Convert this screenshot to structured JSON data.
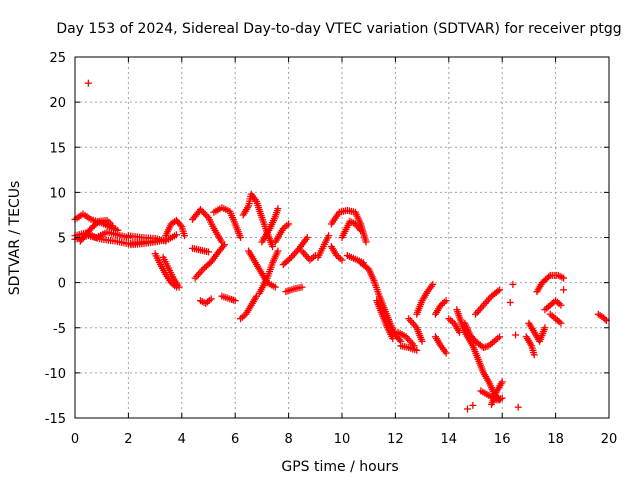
{
  "chart_data": {
    "type": "scatter",
    "title": "Day 153 of 2024, Sidereal Day-to-day VTEC variation (SDTVAR) for receiver ptgg",
    "xlabel": "GPS time / hours",
    "ylabel": "SDTVAR / TECUs",
    "xlim": [
      0,
      20
    ],
    "ylim": [
      -15,
      25
    ],
    "xticks": [
      "0",
      "2",
      "4",
      "6",
      "8",
      "10",
      "12",
      "14",
      "16",
      "18",
      "20"
    ],
    "yticks": [
      "25",
      "20",
      "15",
      "10",
      "5",
      "0",
      "-5",
      "-10",
      "-15"
    ],
    "grid": true,
    "marker": "+",
    "color": "#ff0000",
    "series": [
      {
        "name": "tracks",
        "segments": [
          [
            [
              0.0,
              5.2
            ],
            [
              0.4,
              5.5
            ],
            [
              0.8,
              5.0
            ],
            [
              1.2,
              5.6
            ],
            [
              1.6,
              5.3
            ],
            [
              2.0,
              5.0
            ]
          ],
          [
            [
              0.0,
              7.0
            ],
            [
              0.3,
              7.6
            ],
            [
              0.6,
              7.0
            ],
            [
              1.0,
              6.6
            ],
            [
              1.3,
              6.2
            ],
            [
              1.6,
              5.8
            ]
          ],
          [
            [
              0.0,
              4.8
            ],
            [
              0.5,
              5.2
            ],
            [
              1.0,
              4.8
            ],
            [
              1.5,
              4.6
            ],
            [
              2.0,
              4.3
            ],
            [
              2.5,
              4.5
            ],
            [
              3.0,
              4.6
            ]
          ],
          [
            [
              0.2,
              4.6
            ],
            [
              0.6,
              6.0
            ],
            [
              0.9,
              6.8
            ],
            [
              1.2,
              6.9
            ],
            [
              1.4,
              6.3
            ]
          ],
          [
            [
              2.0,
              5.2
            ],
            [
              2.5,
              5.0
            ],
            [
              3.0,
              4.9
            ],
            [
              3.4,
              4.6
            ]
          ],
          [
            [
              2.1,
              4.2
            ],
            [
              2.5,
              4.3
            ],
            [
              3.0,
              4.5
            ],
            [
              3.5,
              4.8
            ],
            [
              3.8,
              5.3
            ]
          ],
          [
            [
              3.4,
              5.2
            ],
            [
              3.6,
              6.5
            ],
            [
              3.8,
              6.9
            ],
            [
              4.0,
              6.2
            ],
            [
              4.1,
              5.2
            ]
          ],
          [
            [
              3.3,
              2.8
            ],
            [
              3.5,
              1.6
            ],
            [
              3.7,
              0.4
            ],
            [
              3.9,
              -0.5
            ]
          ],
          [
            [
              3.0,
              3.2
            ],
            [
              3.2,
              2.0
            ],
            [
              3.4,
              0.9
            ],
            [
              3.6,
              0.0
            ],
            [
              3.8,
              -0.5
            ]
          ],
          [
            [
              4.4,
              3.8
            ],
            [
              4.7,
              3.6
            ],
            [
              5.0,
              3.4
            ]
          ],
          [
            [
              4.4,
              7.0
            ],
            [
              4.7,
              8.1
            ],
            [
              5.0,
              7.2
            ],
            [
              5.2,
              6.0
            ],
            [
              5.5,
              4.5
            ]
          ],
          [
            [
              4.7,
              -2.0
            ],
            [
              4.9,
              -2.3
            ],
            [
              5.1,
              -1.8
            ]
          ],
          [
            [
              5.5,
              -1.5
            ],
            [
              5.8,
              -1.8
            ],
            [
              6.0,
              -2.0
            ]
          ],
          [
            [
              4.5,
              0.5
            ],
            [
              4.8,
              1.5
            ],
            [
              5.1,
              2.3
            ],
            [
              5.4,
              3.5
            ],
            [
              5.6,
              4.2
            ]
          ],
          [
            [
              5.2,
              7.8
            ],
            [
              5.5,
              8.3
            ],
            [
              5.8,
              7.9
            ],
            [
              6.0,
              6.5
            ],
            [
              6.2,
              5.0
            ]
          ],
          [
            [
              6.2,
              -4.0
            ],
            [
              6.4,
              -3.5
            ],
            [
              6.6,
              -2.5
            ],
            [
              6.8,
              -1.5
            ]
          ],
          [
            [
              6.3,
              7.5
            ],
            [
              6.5,
              8.5
            ],
            [
              6.6,
              9.8
            ],
            [
              6.8,
              9.0
            ],
            [
              7.0,
              7.2
            ],
            [
              7.2,
              5.5
            ],
            [
              7.4,
              4.0
            ]
          ],
          [
            [
              6.9,
              -1.2
            ],
            [
              7.2,
              0.5
            ],
            [
              7.4,
              2.2
            ],
            [
              7.6,
              3.5
            ]
          ],
          [
            [
              7.0,
              4.5
            ],
            [
              7.3,
              6.0
            ],
            [
              7.5,
              7.3
            ],
            [
              7.6,
              8.2
            ]
          ],
          [
            [
              6.5,
              3.5
            ],
            [
              6.8,
              2.0
            ],
            [
              7.0,
              1.0
            ],
            [
              7.2,
              0.0
            ],
            [
              7.5,
              -0.5
            ]
          ],
          [
            [
              7.5,
              4.5
            ],
            [
              7.8,
              6.0
            ],
            [
              8.0,
              6.5
            ]
          ],
          [
            [
              7.9,
              -1.0
            ],
            [
              8.2,
              -0.7
            ],
            [
              8.5,
              -0.5
            ]
          ],
          [
            [
              7.8,
              2.0
            ],
            [
              8.1,
              2.8
            ],
            [
              8.4,
              3.8
            ],
            [
              8.7,
              5.0
            ]
          ],
          [
            [
              8.5,
              3.5
            ],
            [
              8.8,
              2.5
            ],
            [
              9.0,
              3.0
            ]
          ],
          [
            [
              9.1,
              2.8
            ],
            [
              9.3,
              4.0
            ],
            [
              9.5,
              5.2
            ]
          ],
          [
            [
              9.6,
              4.0
            ],
            [
              9.8,
              3.0
            ],
            [
              10.0,
              2.5
            ]
          ],
          [
            [
              9.6,
              6.5
            ],
            [
              9.9,
              7.8
            ],
            [
              10.2,
              8.0
            ],
            [
              10.5,
              7.8
            ],
            [
              10.7,
              6.5
            ],
            [
              10.9,
              4.5
            ]
          ],
          [
            [
              10.0,
              5.0
            ],
            [
              10.3,
              6.8
            ],
            [
              10.5,
              6.5
            ],
            [
              10.7,
              5.8
            ]
          ],
          [
            [
              10.2,
              3.0
            ],
            [
              10.5,
              2.6
            ],
            [
              10.8,
              2.2
            ]
          ],
          [
            [
              10.7,
              2.2
            ],
            [
              11.0,
              1.5
            ],
            [
              11.2,
              0.2
            ],
            [
              11.4,
              -1.5
            ],
            [
              11.6,
              -3.0
            ],
            [
              11.8,
              -4.5
            ],
            [
              12.0,
              -5.8
            ],
            [
              12.2,
              -6.5
            ]
          ],
          [
            [
              11.3,
              -2.0
            ],
            [
              11.5,
              -3.5
            ],
            [
              11.7,
              -5.0
            ],
            [
              11.9,
              -6.2
            ]
          ],
          [
            [
              12.1,
              -5.5
            ],
            [
              12.4,
              -6.0
            ],
            [
              12.7,
              -7.0
            ]
          ],
          [
            [
              12.2,
              -7.0
            ],
            [
              12.5,
              -7.2
            ],
            [
              12.8,
              -7.5
            ]
          ],
          [
            [
              12.5,
              -4.0
            ],
            [
              12.8,
              -5.0
            ],
            [
              13.0,
              -6.5
            ]
          ],
          [
            [
              12.8,
              -3.5
            ],
            [
              13.0,
              -2.0
            ],
            [
              13.2,
              -1.0
            ],
            [
              13.4,
              -0.2
            ]
          ],
          [
            [
              13.5,
              -3.5
            ],
            [
              13.7,
              -2.5
            ],
            [
              13.9,
              -2.0
            ]
          ],
          [
            [
              13.5,
              -6.0
            ],
            [
              13.7,
              -7.0
            ],
            [
              13.9,
              -7.8
            ]
          ],
          [
            [
              14.0,
              -4.0
            ],
            [
              14.2,
              -4.5
            ],
            [
              14.4,
              -5.5
            ]
          ],
          [
            [
              14.3,
              -3.0
            ],
            [
              14.6,
              -5.5
            ],
            [
              14.9,
              -7.0
            ],
            [
              15.1,
              -8.5
            ],
            [
              15.3,
              -10.0
            ],
            [
              15.5,
              -11.0
            ],
            [
              15.7,
              -12.3
            ],
            [
              15.9,
              -13.0
            ]
          ],
          [
            [
              14.6,
              -4.5
            ],
            [
              14.8,
              -5.8
            ],
            [
              15.0,
              -6.5
            ],
            [
              15.3,
              -7.2
            ],
            [
              15.5,
              -7.0
            ],
            [
              15.7,
              -6.5
            ],
            [
              15.9,
              -6.0
            ]
          ],
          [
            [
              15.0,
              -3.5
            ],
            [
              15.3,
              -2.5
            ],
            [
              15.6,
              -1.5
            ],
            [
              15.9,
              -0.8
            ]
          ],
          [
            [
              15.2,
              -12.0
            ],
            [
              15.5,
              -12.5
            ],
            [
              15.8,
              -13.0
            ],
            [
              16.0,
              -12.8
            ]
          ],
          [
            [
              15.6,
              -13.5
            ],
            [
              15.8,
              -12.0
            ],
            [
              16.0,
              -11.0
            ]
          ],
          [
            [
              16.9,
              -6.0
            ],
            [
              17.1,
              -7.0
            ],
            [
              17.2,
              -8.0
            ]
          ],
          [
            [
              17.0,
              -4.5
            ],
            [
              17.2,
              -5.5
            ],
            [
              17.4,
              -6.5
            ],
            [
              17.6,
              -5.0
            ]
          ],
          [
            [
              17.3,
              -1.0
            ],
            [
              17.5,
              0.0
            ],
            [
              17.8,
              0.8
            ],
            [
              18.1,
              0.8
            ],
            [
              18.3,
              0.5
            ]
          ],
          [
            [
              17.6,
              -3.0
            ],
            [
              17.8,
              -2.5
            ],
            [
              18.0,
              -2.0
            ],
            [
              18.2,
              -2.5
            ]
          ],
          [
            [
              17.8,
              -3.5
            ],
            [
              18.0,
              -4.0
            ],
            [
              18.2,
              -4.5
            ]
          ],
          [
            [
              19.6,
              -3.5
            ],
            [
              19.8,
              -3.9
            ],
            [
              19.9,
              -4.2
            ]
          ],
          [
            [
              16.3,
              -2.2
            ]
          ],
          [
            [
              16.4,
              -0.2
            ]
          ],
          [
            [
              16.5,
              -5.8
            ]
          ],
          [
            [
              16.6,
              -13.8
            ]
          ],
          [
            [
              0.5,
              22.1
            ]
          ],
          [
            [
              14.9,
              -13.6
            ]
          ],
          [
            [
              14.7,
              -14.0
            ]
          ],
          [
            [
              18.3,
              -0.8
            ]
          ]
        ]
      }
    ]
  }
}
